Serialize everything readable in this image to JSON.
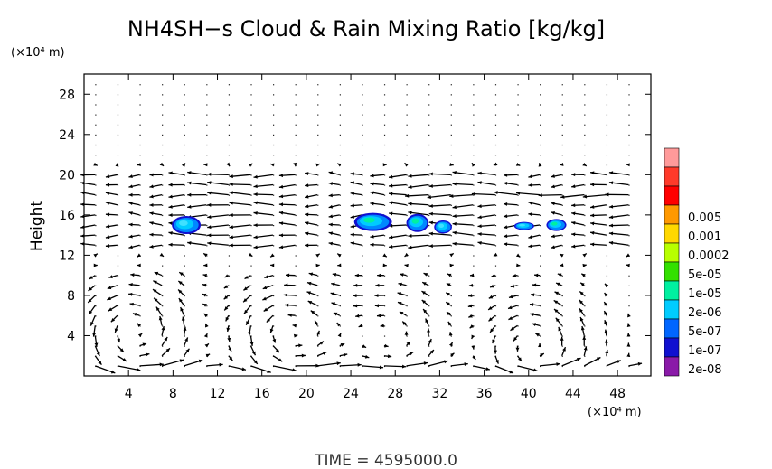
{
  "chart_data": {
    "type": "heatmap",
    "title": "NH4SH−s Cloud & Rain Mixing Ratio [kg/kg]",
    "ylabel": "Height",
    "x_unit": "(×10⁴ m)",
    "y_unit": "(×10⁴ m)",
    "xlim": [
      0,
      51
    ],
    "ylim": [
      0,
      30
    ],
    "x_ticks": [
      4,
      8,
      12,
      16,
      20,
      24,
      28,
      32,
      36,
      40,
      44,
      48
    ],
    "y_ticks": [
      4,
      8,
      12,
      16,
      20,
      24,
      28
    ],
    "colorbar": {
      "levels": [
        "0.005",
        "0.001",
        "0.0002",
        "5e-05",
        "1e-05",
        "2e-06",
        "5e-07",
        "1e-07",
        "2e-08"
      ],
      "colors": [
        "#ff9a9a",
        "#ff3a2a",
        "#ff0000",
        "#ff9900",
        "#ffd800",
        "#b8ff00",
        "#33e000",
        "#00f0a0",
        "#00ccff",
        "#0066ff",
        "#1010d0",
        "#8a1aa8"
      ]
    },
    "clouds": [
      {
        "x": 9.2,
        "y": 15.0,
        "w": 2.6,
        "h": 1.8,
        "level": "5e-07"
      },
      {
        "x": 26.0,
        "y": 15.3,
        "w": 3.4,
        "h": 1.8,
        "level": "2e-06"
      },
      {
        "x": 30.0,
        "y": 15.2,
        "w": 2.0,
        "h": 1.8,
        "level": "2e-06"
      },
      {
        "x": 32.3,
        "y": 14.8,
        "w": 1.6,
        "h": 1.3,
        "level": "5e-07"
      },
      {
        "x": 39.6,
        "y": 14.9,
        "w": 1.8,
        "h": 0.8,
        "level": "5e-07"
      },
      {
        "x": 42.5,
        "y": 15.0,
        "w": 1.8,
        "h": 1.2,
        "level": "2e-06"
      }
    ],
    "wind_vectors": "u-w velocity field: overturning circulations near x=4, 18, 28 and 40 below height 10; upper-level flow near height 14-20",
    "time_label": "TIME  =  4595000.0"
  }
}
